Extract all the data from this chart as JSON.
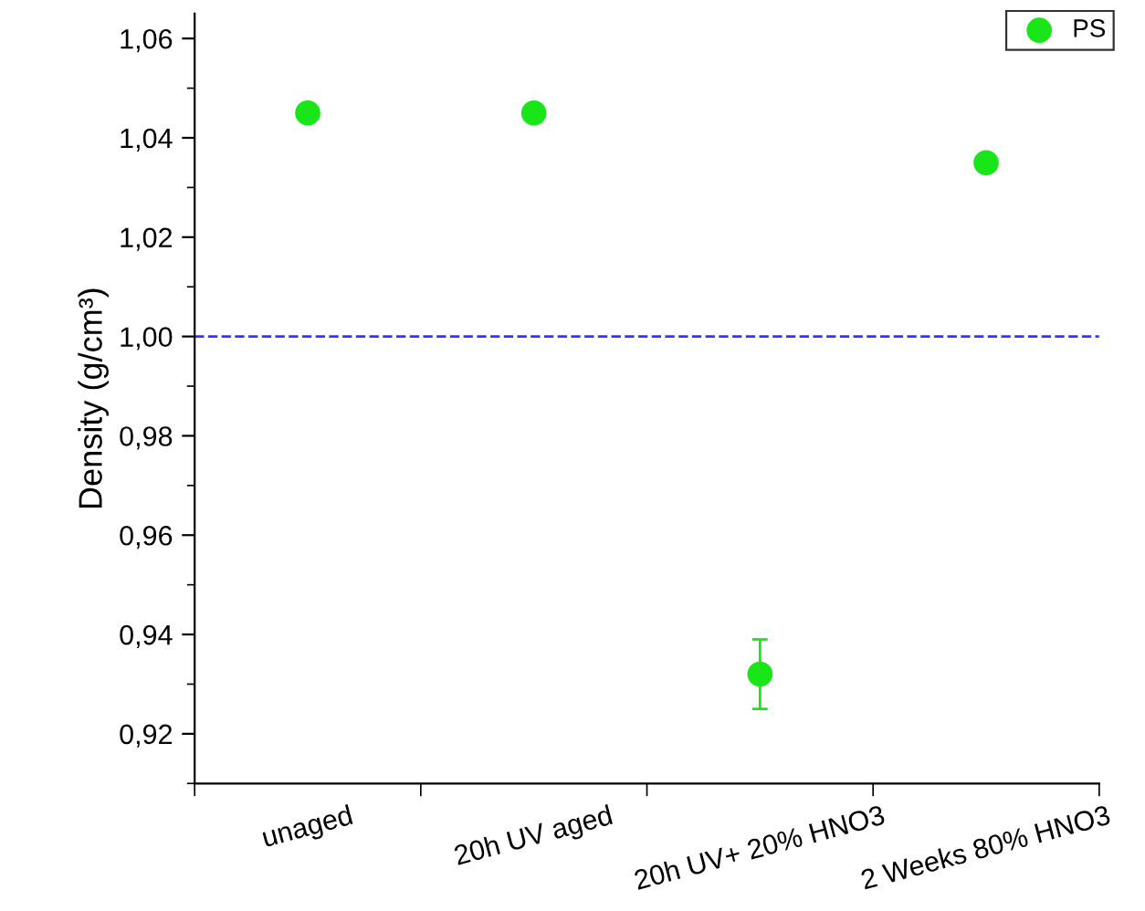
{
  "chart_data": {
    "type": "scatter",
    "ylabel": "Density (g/cm³)",
    "categories": [
      "unaged",
      "20h UV aged",
      "20h UV+ 20% HNO3",
      "2 Weeks 80% HNO3"
    ],
    "series": [
      {
        "name": "PS",
        "color": "#19e619",
        "values": [
          1.045,
          1.045,
          0.932,
          1.035
        ],
        "errors": [
          null,
          null,
          [
            0.925,
            0.939
          ],
          null
        ]
      }
    ],
    "ylim": [
      0.91,
      1.065
    ],
    "yticks": [
      {
        "value": 0.92,
        "label": "0,92"
      },
      {
        "value": 0.94,
        "label": "0,94"
      },
      {
        "value": 0.96,
        "label": "0,96"
      },
      {
        "value": 0.98,
        "label": "0,98"
      },
      {
        "value": 1.0,
        "label": "1,00"
      },
      {
        "value": 1.02,
        "label": "1,02"
      },
      {
        "value": 1.04,
        "label": "1,04"
      },
      {
        "value": 1.06,
        "label": "1,06"
      }
    ],
    "ref_lines": [
      {
        "axis": "y",
        "value": 1.0,
        "color": "#3333ff",
        "line_style": "dashed"
      }
    ],
    "marker": "circle",
    "grid": false,
    "legend": "top right"
  }
}
